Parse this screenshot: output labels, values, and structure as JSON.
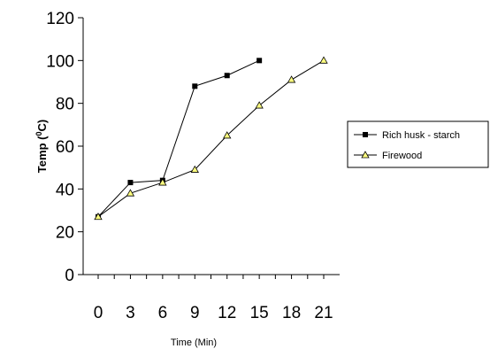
{
  "chart_data": {
    "type": "line",
    "xlabel": "Time (Min)",
    "ylabel": "Temp (0C)",
    "ylabel_parts": {
      "text": "Temp (",
      "superscript": "0",
      "unit": "C)"
    },
    "x_ticks": [
      0,
      3,
      6,
      9,
      12,
      15,
      18,
      21
    ],
    "y_ticks": [
      0,
      20,
      40,
      60,
      80,
      100,
      120
    ],
    "xlim": [
      0,
      21
    ],
    "ylim": [
      0,
      120
    ],
    "grid": false,
    "legend_position": "right",
    "series": [
      {
        "name": "Rich husk - starch",
        "marker": "square",
        "color": "#000000",
        "x": [
          0,
          3,
          6,
          9,
          12,
          15
        ],
        "y": [
          27,
          43,
          44,
          88,
          93,
          100
        ]
      },
      {
        "name": "Firewood",
        "marker": "triangle",
        "color": "#000000",
        "marker_fill": "#ffff80",
        "x": [
          0,
          3,
          6,
          9,
          12,
          15,
          18,
          21
        ],
        "y": [
          27,
          38,
          43,
          49,
          65,
          79,
          91,
          100
        ]
      }
    ]
  }
}
